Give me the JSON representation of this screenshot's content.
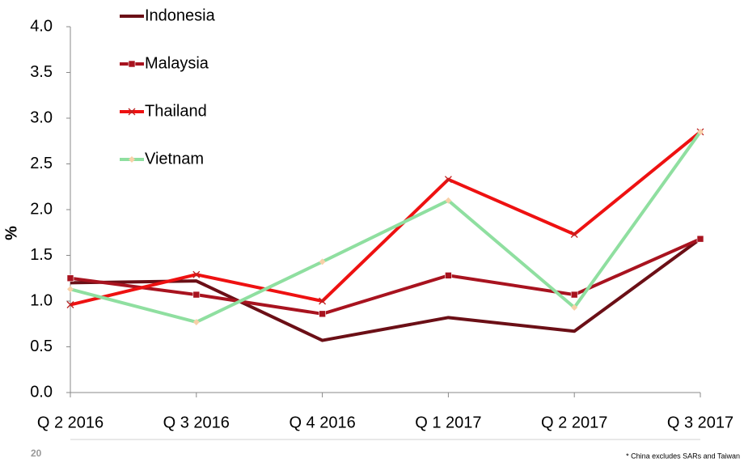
{
  "chart_data": {
    "type": "line",
    "ylabel": "%",
    "categories": [
      "Q 2 2016",
      "Q 3 2016",
      "Q 4 2016",
      "Q 1 2017",
      "Q 2 2017",
      "Q 3 2017"
    ],
    "series": [
      {
        "name": "Indonesia",
        "color": "#6b0f16",
        "marker": "none",
        "values": [
          1.2,
          1.22,
          0.57,
          0.82,
          0.67,
          1.68
        ]
      },
      {
        "name": "Malaysia",
        "color": "#a8131f",
        "marker": "square",
        "values": [
          1.25,
          1.07,
          0.86,
          1.28,
          1.07,
          1.68
        ]
      },
      {
        "name": "Thailand",
        "color": "#ee1111",
        "marker": "x",
        "values": [
          0.96,
          1.29,
          1.0,
          2.33,
          1.73,
          2.85
        ]
      },
      {
        "name": "Vietnam",
        "color": "#8fdfa0",
        "marker": "diamond",
        "values": [
          1.13,
          0.77,
          1.43,
          2.1,
          0.93,
          2.85
        ]
      }
    ],
    "ylim": [
      0,
      4
    ],
    "yticks": [
      {
        "value": 0,
        "label": "0.0"
      },
      {
        "value": 0.5,
        "label": "0.5"
      },
      {
        "value": 1,
        "label": "1.0"
      },
      {
        "value": 1.5,
        "label": "1.5"
      },
      {
        "value": 2,
        "label": "2.0"
      },
      {
        "value": 2.5,
        "label": "2.5"
      },
      {
        "value": 3,
        "label": "3.0"
      },
      {
        "value": 3.5,
        "label": "3.5"
      },
      {
        "value": 4,
        "label": "4.0"
      }
    ],
    "grid": false,
    "legend": "top-left"
  },
  "footer": {
    "page": "20",
    "note": "* China excludes SARs and Taiwan"
  }
}
